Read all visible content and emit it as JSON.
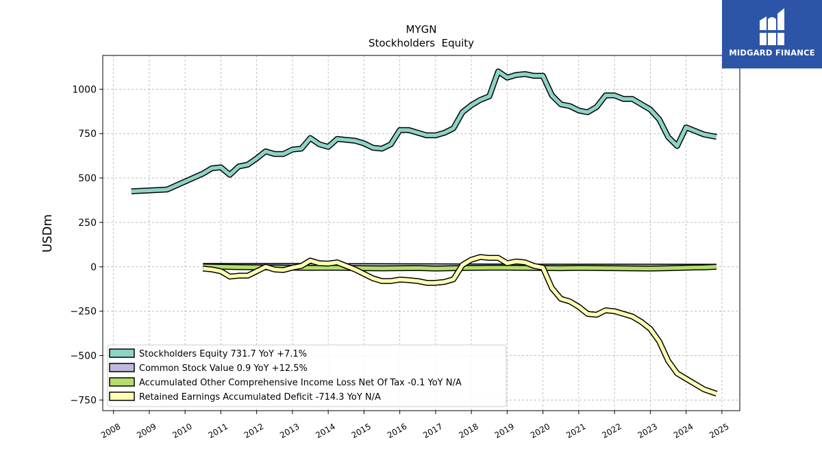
{
  "brand": {
    "name": "MIDGARD FINANCE",
    "icon": "midgard-logo-icon",
    "color": "#2c55a8"
  },
  "chart_data": {
    "type": "line",
    "title": "MYGN",
    "subtitle": "Stockholders  Equity",
    "xlabel": "",
    "ylabel": "USDm",
    "xlim": [
      2007.7,
      2025.5
    ],
    "ylim": [
      -810,
      1190
    ],
    "x_ticks": [
      2008,
      2009,
      2010,
      2011,
      2012,
      2013,
      2014,
      2015,
      2016,
      2017,
      2018,
      2019,
      2020,
      2021,
      2022,
      2023,
      2024,
      2025
    ],
    "x_tick_labels": [
      "2008",
      "2009",
      "2010",
      "2011",
      "2012",
      "2013",
      "2014",
      "2015",
      "2016",
      "2017",
      "2018",
      "2019",
      "2020",
      "2021",
      "2022",
      "2023",
      "2024",
      "2025"
    ],
    "y_ticks": [
      -750,
      -500,
      -250,
      0,
      250,
      500,
      750,
      1000
    ],
    "y_tick_labels": [
      "−750",
      "−500",
      "−250",
      "0",
      "250",
      "500",
      "750",
      "1000"
    ],
    "grid": true,
    "legend_position": "lower-left",
    "series": [
      {
        "name": "Stockholders Equity",
        "legend": "Stockholders Equity  731.7 YoY +7.1%",
        "color": "#8dd3c7",
        "points": [
          [
            2008.5,
            425
          ],
          [
            2009.0,
            430
          ],
          [
            2009.5,
            435
          ],
          [
            2010.0,
            480
          ],
          [
            2010.5,
            525
          ],
          [
            2010.75,
            555
          ],
          [
            2011.0,
            560
          ],
          [
            2011.25,
            518
          ],
          [
            2011.5,
            565
          ],
          [
            2011.75,
            575
          ],
          [
            2012.0,
            610
          ],
          [
            2012.25,
            650
          ],
          [
            2012.5,
            635
          ],
          [
            2012.75,
            635
          ],
          [
            2013.0,
            660
          ],
          [
            2013.25,
            665
          ],
          [
            2013.5,
            725
          ],
          [
            2013.75,
            690
          ],
          [
            2014.0,
            675
          ],
          [
            2014.25,
            720
          ],
          [
            2014.5,
            715
          ],
          [
            2014.75,
            710
          ],
          [
            2015.0,
            695
          ],
          [
            2015.25,
            670
          ],
          [
            2015.5,
            665
          ],
          [
            2015.75,
            690
          ],
          [
            2016.0,
            770
          ],
          [
            2016.25,
            770
          ],
          [
            2016.5,
            755
          ],
          [
            2016.75,
            740
          ],
          [
            2017.0,
            740
          ],
          [
            2017.25,
            755
          ],
          [
            2017.5,
            780
          ],
          [
            2017.75,
            870
          ],
          [
            2018.0,
            910
          ],
          [
            2018.25,
            940
          ],
          [
            2018.5,
            960
          ],
          [
            2018.75,
            1100
          ],
          [
            2019.0,
            1065
          ],
          [
            2019.25,
            1080
          ],
          [
            2019.5,
            1085
          ],
          [
            2019.75,
            1075
          ],
          [
            2020.0,
            1075
          ],
          [
            2020.25,
            965
          ],
          [
            2020.5,
            915
          ],
          [
            2020.75,
            905
          ],
          [
            2021.0,
            880
          ],
          [
            2021.25,
            870
          ],
          [
            2021.5,
            900
          ],
          [
            2021.75,
            965
          ],
          [
            2022.0,
            965
          ],
          [
            2022.25,
            945
          ],
          [
            2022.5,
            945
          ],
          [
            2022.75,
            915
          ],
          [
            2023.0,
            885
          ],
          [
            2023.25,
            830
          ],
          [
            2023.5,
            730
          ],
          [
            2023.75,
            680
          ],
          [
            2024.0,
            785
          ],
          [
            2024.25,
            765
          ],
          [
            2024.5,
            745
          ],
          [
            2024.85,
            731.7
          ]
        ]
      },
      {
        "name": "Common Stock Value",
        "legend": "Common Stock Value  0.9 YoY +12.5%",
        "color": "#bebada",
        "points": [
          [
            2010.5,
            5
          ],
          [
            2011.5,
            5
          ],
          [
            2013.0,
            5
          ],
          [
            2015.0,
            4
          ],
          [
            2017.0,
            3
          ],
          [
            2018.5,
            2
          ],
          [
            2020.0,
            1
          ],
          [
            2022.0,
            1
          ],
          [
            2024.85,
            0.9
          ]
        ]
      },
      {
        "name": "Accumulated Other Comprehensive Income Loss Net Of Tax",
        "legend": "Accumulated Other Comprehensive Income Loss Net Of Tax  -0.1 YoY N/A",
        "color": "#b3de69",
        "points": [
          [
            2010.5,
            2
          ],
          [
            2011.0,
            0
          ],
          [
            2011.5,
            -2
          ],
          [
            2012.0,
            -3
          ],
          [
            2012.5,
            -4
          ],
          [
            2013.0,
            -5
          ],
          [
            2013.5,
            -6
          ],
          [
            2014.0,
            -5
          ],
          [
            2014.5,
            -6
          ],
          [
            2015.0,
            -8
          ],
          [
            2015.5,
            -9
          ],
          [
            2016.0,
            -8
          ],
          [
            2016.5,
            -7
          ],
          [
            2017.0,
            -10
          ],
          [
            2017.5,
            -8
          ],
          [
            2018.0,
            -6
          ],
          [
            2018.5,
            -5
          ],
          [
            2019.0,
            -5
          ],
          [
            2019.5,
            -6
          ],
          [
            2020.0,
            -7
          ],
          [
            2020.5,
            -8
          ],
          [
            2021.0,
            -6
          ],
          [
            2021.5,
            -7
          ],
          [
            2022.0,
            -8
          ],
          [
            2022.5,
            -9
          ],
          [
            2023.0,
            -10
          ],
          [
            2023.5,
            -8
          ],
          [
            2024.0,
            -5
          ],
          [
            2024.5,
            -3
          ],
          [
            2024.85,
            -0.1
          ]
        ]
      },
      {
        "name": "Retained Earnings Accumulated Deficit",
        "legend": "Retained Earnings Accumulated Deficit  -714.3 YoY N/A",
        "color": "#ffffb3",
        "points": [
          [
            2010.5,
            -10
          ],
          [
            2010.75,
            -15
          ],
          [
            2011.0,
            -25
          ],
          [
            2011.25,
            -55
          ],
          [
            2011.5,
            -50
          ],
          [
            2011.75,
            -50
          ],
          [
            2012.0,
            -25
          ],
          [
            2012.25,
            0
          ],
          [
            2012.5,
            -15
          ],
          [
            2012.75,
            -18
          ],
          [
            2013.0,
            -5
          ],
          [
            2013.25,
            5
          ],
          [
            2013.5,
            35
          ],
          [
            2013.75,
            20
          ],
          [
            2014.0,
            18
          ],
          [
            2014.25,
            25
          ],
          [
            2014.5,
            5
          ],
          [
            2014.75,
            -15
          ],
          [
            2015.0,
            -40
          ],
          [
            2015.25,
            -65
          ],
          [
            2015.5,
            -80
          ],
          [
            2015.75,
            -80
          ],
          [
            2016.0,
            -72
          ],
          [
            2016.25,
            -75
          ],
          [
            2016.5,
            -80
          ],
          [
            2016.75,
            -90
          ],
          [
            2017.0,
            -90
          ],
          [
            2017.25,
            -85
          ],
          [
            2017.5,
            -70
          ],
          [
            2017.75,
            10
          ],
          [
            2018.0,
            40
          ],
          [
            2018.25,
            55
          ],
          [
            2018.5,
            50
          ],
          [
            2018.75,
            50
          ],
          [
            2019.0,
            20
          ],
          [
            2019.25,
            30
          ],
          [
            2019.5,
            25
          ],
          [
            2019.75,
            5
          ],
          [
            2020.0,
            -5
          ],
          [
            2020.25,
            -120
          ],
          [
            2020.5,
            -180
          ],
          [
            2020.75,
            -195
          ],
          [
            2021.0,
            -225
          ],
          [
            2021.25,
            -265
          ],
          [
            2021.5,
            -270
          ],
          [
            2021.75,
            -245
          ],
          [
            2022.0,
            -250
          ],
          [
            2022.25,
            -265
          ],
          [
            2022.5,
            -280
          ],
          [
            2022.75,
            -310
          ],
          [
            2023.0,
            -350
          ],
          [
            2023.25,
            -420
          ],
          [
            2023.5,
            -530
          ],
          [
            2023.75,
            -600
          ],
          [
            2024.0,
            -630
          ],
          [
            2024.25,
            -660
          ],
          [
            2024.5,
            -690
          ],
          [
            2024.85,
            -714.3
          ]
        ]
      }
    ]
  }
}
